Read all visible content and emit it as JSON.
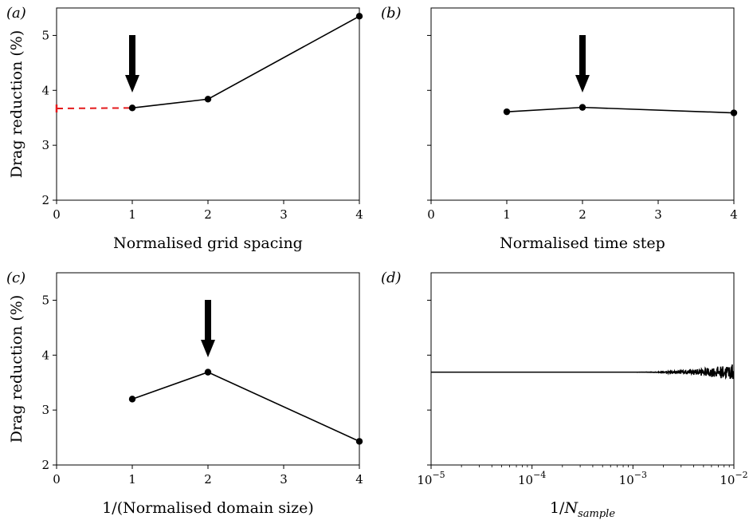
{
  "figure": {
    "panels": [
      {
        "label": "(a)",
        "xlabel": "Normalised grid spacing",
        "ylabel": "Drag reduction (%)"
      },
      {
        "label": "(b)",
        "xlabel": "Normalised time step",
        "ylabel": ""
      },
      {
        "label": "(c)",
        "xlabel": "1/(Normalised domain size)",
        "ylabel": "Drag reduction (%)"
      },
      {
        "label": "(d)",
        "xlabel_prefix": "1/",
        "xlabel_var": "N",
        "xlabel_sub": "sample",
        "ylabel": ""
      }
    ]
  },
  "chart_data": [
    {
      "panel": "(a)",
      "type": "line",
      "xlabel": "Normalised grid spacing",
      "ylabel": "Drag reduction (%)",
      "xlim": [
        0,
        4
      ],
      "ylim": [
        2,
        5.5
      ],
      "xticks": [
        "0",
        "1",
        "2",
        "3",
        "4"
      ],
      "yticks": [
        "2",
        "3",
        "4",
        "5"
      ],
      "series": [
        {
          "x": [
            1,
            2,
            4
          ],
          "y": [
            3.68,
            3.84,
            5.35
          ],
          "color": "#000000",
          "style": "solid",
          "markers": true
        },
        {
          "x": [
            0,
            1
          ],
          "y": [
            3.67,
            3.68
          ],
          "color": "#e41a1c",
          "style": "dashed",
          "markers": false,
          "errorbar_at_x": 0
        }
      ],
      "annotations": [
        {
          "type": "arrow",
          "x": 1,
          "pointing": "down"
        }
      ]
    },
    {
      "panel": "(b)",
      "type": "line",
      "xlabel": "Normalised time step",
      "xlim": [
        0,
        4
      ],
      "ylim": [
        2,
        5.5
      ],
      "xticks": [
        "0",
        "1",
        "2",
        "3",
        "4"
      ],
      "series": [
        {
          "x": [
            1,
            2,
            4
          ],
          "y": [
            3.61,
            3.69,
            3.59
          ],
          "color": "#000000",
          "style": "solid",
          "markers": true
        }
      ],
      "annotations": [
        {
          "type": "arrow",
          "x": 2,
          "pointing": "down"
        }
      ]
    },
    {
      "panel": "(c)",
      "type": "line",
      "xlabel": "1/(Normalised domain size)",
      "ylabel": "Drag reduction (%)",
      "xlim": [
        0,
        4
      ],
      "ylim": [
        2,
        5.5
      ],
      "xticks": [
        "0",
        "1",
        "2",
        "3",
        "4"
      ],
      "yticks": [
        "2",
        "3",
        "4",
        "5"
      ],
      "series": [
        {
          "x": [
            1,
            2,
            4
          ],
          "y": [
            3.2,
            3.69,
            2.43
          ],
          "color": "#000000",
          "style": "solid",
          "markers": true
        }
      ],
      "annotations": [
        {
          "type": "arrow",
          "x": 2,
          "pointing": "down"
        }
      ]
    },
    {
      "panel": "(d)",
      "type": "line",
      "xlabel": "1/N_sample",
      "xscale": "log",
      "xlim": [
        1e-05,
        0.01
      ],
      "ylim": [
        2,
        5.5
      ],
      "xticks": [
        {
          "base": "10",
          "exp": "−5"
        },
        {
          "base": "10",
          "exp": "−4"
        },
        {
          "base": "10",
          "exp": "−3"
        },
        {
          "base": "10",
          "exp": "−2"
        }
      ],
      "series": [
        {
          "type": "converging-signal",
          "y_mean": 3.69,
          "noise_onset_x": 0.001,
          "noise_amplitude_at_xmax": 0.15,
          "color": "#000000"
        }
      ]
    }
  ]
}
